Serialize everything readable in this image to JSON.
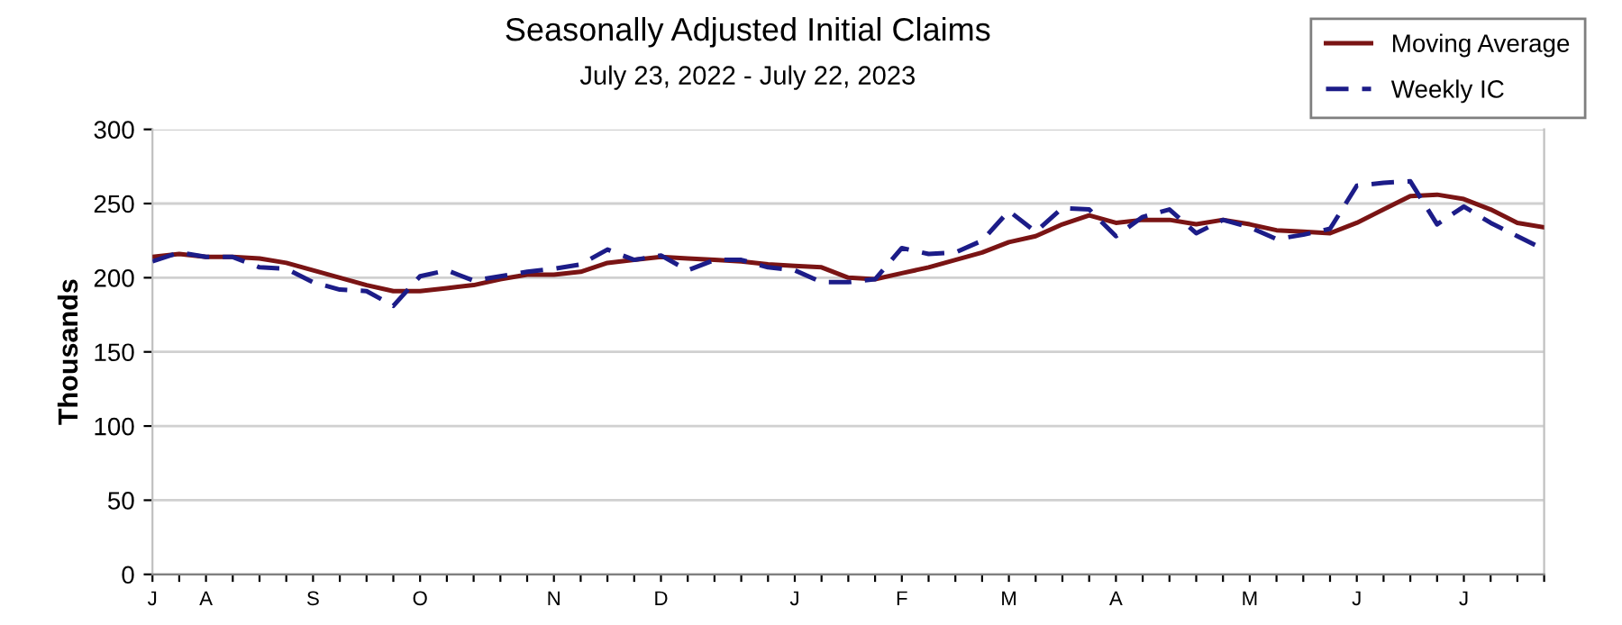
{
  "chart_data": {
    "type": "line",
    "title": "Seasonally Adjusted Initial Claims",
    "subtitle": "July 23, 2022 - July 22, 2023",
    "ylabel": "Thousands",
    "categories": [
      "J",
      null,
      "A",
      null,
      null,
      null,
      "S",
      null,
      null,
      null,
      "O",
      null,
      null,
      null,
      null,
      "N",
      null,
      null,
      null,
      "D",
      null,
      null,
      null,
      null,
      "J",
      null,
      null,
      null,
      "F",
      null,
      null,
      null,
      "M",
      null,
      null,
      null,
      "A",
      null,
      null,
      null,
      null,
      "M",
      null,
      null,
      null,
      "J",
      null,
      null,
      null,
      "J",
      null,
      null,
      null
    ],
    "series": [
      {
        "name": "Moving Average",
        "color": "#7a1414",
        "line_style": "solid",
        "values": [
          214,
          216,
          214,
          214,
          213,
          210,
          205,
          200,
          195,
          191,
          191,
          193,
          195,
          199,
          202,
          202,
          204,
          210,
          212,
          214,
          213,
          212,
          211,
          209,
          208,
          207,
          200,
          199,
          203,
          207,
          212,
          217,
          224,
          228,
          236,
          242,
          237,
          239,
          239,
          236,
          239,
          236,
          232,
          231,
          230,
          237,
          246,
          255,
          256,
          253,
          246,
          237,
          234
        ]
      },
      {
        "name": "Weekly IC",
        "color": "#1c1c88",
        "line_style": "dashed",
        "values": [
          211,
          217,
          214,
          214,
          207,
          206,
          197,
          192,
          191,
          181,
          201,
          205,
          198,
          201,
          204,
          206,
          209,
          219,
          212,
          215,
          205,
          212,
          212,
          207,
          205,
          197,
          197,
          199,
          220,
          216,
          217,
          225,
          245,
          231,
          247,
          246,
          228,
          241,
          246,
          230,
          239,
          234,
          226,
          229,
          233,
          262,
          264,
          265,
          236,
          248,
          237,
          228,
          219
        ]
      }
    ],
    "ylim": [
      0,
      300
    ],
    "yticks": [
      0,
      50,
      100,
      150,
      200,
      250,
      300
    ],
    "grid": "y",
    "legend": "top right",
    "marker": "none"
  }
}
